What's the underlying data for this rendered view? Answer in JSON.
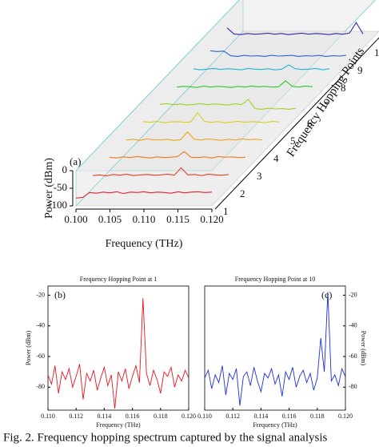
{
  "caption": "Fig. 2. Frequency hopping spectrum captured by the signal analysis",
  "chart_data": [
    {
      "type": "waterfall",
      "panel_label": "(a)",
      "y_label": "Power (dBm)",
      "x_label": "Frequency (THz)",
      "z_label": "Frequency Hopping Points",
      "xlim": [
        0.1,
        0.12
      ],
      "xticks": [
        {
          "value": 0.1,
          "label": "0.100"
        },
        {
          "value": 0.105,
          "label": "0.105"
        },
        {
          "value": 0.11,
          "label": "0.110"
        },
        {
          "value": 0.115,
          "label": "0.115"
        },
        {
          "value": 0.12,
          "label": "0.120"
        }
      ],
      "ylim": [
        -100,
        0
      ],
      "yticks": [
        0,
        -50,
        -100
      ],
      "x": [
        0.1,
        0.101,
        0.102,
        0.103,
        0.104,
        0.105,
        0.106,
        0.107,
        0.108,
        0.109,
        0.11,
        0.111,
        0.112,
        0.113,
        0.114,
        0.115,
        0.116,
        0.117,
        0.118,
        0.119,
        0.12
      ],
      "series": [
        {
          "name": "1",
          "color": "#e8202a",
          "values": [
            -78,
            -76,
            -62,
            -64,
            -61,
            -63,
            -60,
            -65,
            -61,
            -62,
            -60,
            -63,
            -61,
            -62,
            -64,
            -60,
            -63,
            -61,
            -60,
            -62,
            -61
          ]
        },
        {
          "name": "2",
          "color": "#ee3a24",
          "values": [
            -64,
            -62,
            -65,
            -61,
            -63,
            -60,
            -64,
            -62,
            -61,
            -63,
            -62,
            -60,
            -63,
            -42,
            -62,
            -61,
            -64,
            -60,
            -62,
            -63,
            -61
          ]
        },
        {
          "name": "3",
          "color": "#f07a1c",
          "values": [
            -62,
            -64,
            -61,
            -63,
            -60,
            -62,
            -64,
            -61,
            -63,
            -62,
            -60,
            -46,
            -62,
            -63,
            -61,
            -64,
            -60,
            -62,
            -61,
            -63,
            -62
          ]
        },
        {
          "name": "4",
          "color": "#f5a21a",
          "values": [
            -63,
            -61,
            -64,
            -60,
            -62,
            -63,
            -61,
            -64,
            -62,
            -40,
            -61,
            -63,
            -60,
            -62,
            -64,
            -61,
            -63,
            -60,
            -62,
            -61,
            -63
          ]
        },
        {
          "name": "5",
          "color": "#d6d21c",
          "values": [
            -61,
            -63,
            -60,
            -64,
            -62,
            -61,
            -63,
            -62,
            -36,
            -60,
            -63,
            -61,
            -64,
            -62,
            -60,
            -63,
            -61,
            -62,
            -64,
            -60,
            -62
          ]
        },
        {
          "name": "6",
          "color": "#9cd41e",
          "values": [
            -62,
            -60,
            -63,
            -61,
            -64,
            -62,
            -60,
            -63,
            -61,
            -62,
            -64,
            -60,
            -63,
            -48,
            -74,
            -76,
            -73,
            -75,
            -74,
            -76,
            -73
          ]
        },
        {
          "name": "7",
          "color": "#2ec82a",
          "values": [
            -63,
            -61,
            -62,
            -64,
            -60,
            -63,
            -61,
            -62,
            -64,
            -61,
            -63,
            -60,
            -62,
            -61,
            -63,
            -62,
            -45,
            -61,
            -63,
            -60,
            -62
          ]
        },
        {
          "name": "8",
          "color": "#1cb6d8",
          "values": [
            -61,
            -64,
            -62,
            -60,
            -63,
            -61,
            -62,
            -64,
            -60,
            -62,
            -63,
            -61,
            -64,
            -62,
            -50,
            -61,
            -63,
            -62,
            -60,
            -64,
            -61
          ]
        },
        {
          "name": "9",
          "color": "#2a5fd8",
          "values": [
            -60,
            -62,
            -61,
            -74,
            -76,
            -73,
            -75,
            -74,
            -76,
            -73,
            -75,
            -74,
            -73,
            -76,
            -74,
            -75,
            -73,
            -76,
            -74,
            -75,
            -73
          ]
        },
        {
          "name": "10",
          "color": "#2f2aa8",
          "values": [
            -45,
            -62,
            -64,
            -61,
            -63,
            -62,
            -60,
            -63,
            -61,
            -64,
            -62,
            -60,
            -63,
            -61,
            -62,
            -64,
            -61,
            -63,
            -60,
            -30,
            -62
          ]
        }
      ]
    },
    {
      "type": "line",
      "panel_label": "(b)",
      "title": "Frequency Hopping Point at 1",
      "y_label": "Power (dBm)",
      "x_label": "Frequency (THz)",
      "color": "#e8141c",
      "xlim": [
        0.11,
        0.12
      ],
      "xticks": [
        {
          "value": 0.11,
          "label": "0.110"
        },
        {
          "value": 0.112,
          "label": "0.112"
        },
        {
          "value": 0.114,
          "label": "0.114"
        },
        {
          "value": 0.116,
          "label": "0.116"
        },
        {
          "value": 0.118,
          "label": "0.118"
        },
        {
          "value": 0.12,
          "label": "0.120"
        }
      ],
      "ylim": [
        -95,
        -14
      ],
      "yticks": [
        -20,
        -40,
        -60,
        -80
      ],
      "x": [
        0.11,
        0.11025,
        0.1105,
        0.11075,
        0.111,
        0.11125,
        0.1115,
        0.11175,
        0.112,
        0.11225,
        0.1125,
        0.11275,
        0.113,
        0.11325,
        0.1135,
        0.11375,
        0.114,
        0.11425,
        0.1145,
        0.11475,
        0.115,
        0.11525,
        0.1155,
        0.11575,
        0.116,
        0.11625,
        0.1165,
        0.11675,
        0.117,
        0.11725,
        0.1175,
        0.11775,
        0.118,
        0.11825,
        0.1185,
        0.11875,
        0.119,
        0.11925,
        0.1195,
        0.11975,
        0.12
      ],
      "values": [
        -72,
        -78,
        -66,
        -84,
        -70,
        -75,
        -68,
        -80,
        -73,
        -65,
        -88,
        -71,
        -76,
        -69,
        -82,
        -74,
        -67,
        -79,
        -72,
        -94,
        -70,
        -76,
        -68,
        -81,
        -73,
        -66,
        -77,
        -22,
        -71,
        -79,
        -69,
        -75,
        -84,
        -70,
        -73,
        -67,
        -80,
        -72,
        -76,
        -69,
        -74
      ]
    },
    {
      "type": "line",
      "panel_label": "(c)",
      "title": "Frequency Hopping Point at 10",
      "y_label": "Power (dBm)",
      "x_label": "Frequency (THz)",
      "color": "#1a2ee0",
      "xlim": [
        0.11,
        0.12
      ],
      "xticks": [
        {
          "value": 0.11,
          "label": "0.110"
        },
        {
          "value": 0.112,
          "label": "0.112"
        },
        {
          "value": 0.114,
          "label": "0.114"
        },
        {
          "value": 0.116,
          "label": "0.116"
        },
        {
          "value": 0.118,
          "label": "0.118"
        },
        {
          "value": 0.12,
          "label": "0.120"
        }
      ],
      "ylim": [
        -95,
        -14
      ],
      "yticks": [
        -20,
        -40,
        -60,
        -80
      ],
      "x": [
        0.11,
        0.11025,
        0.1105,
        0.11075,
        0.111,
        0.11125,
        0.1115,
        0.11175,
        0.112,
        0.11225,
        0.1125,
        0.11275,
        0.113,
        0.11325,
        0.1135,
        0.11375,
        0.114,
        0.11425,
        0.1145,
        0.11475,
        0.115,
        0.11525,
        0.1155,
        0.11575,
        0.116,
        0.11625,
        0.1165,
        0.11675,
        0.117,
        0.11725,
        0.1175,
        0.11775,
        0.118,
        0.11825,
        0.1185,
        0.11875,
        0.119,
        0.11925,
        0.1195,
        0.11975,
        0.12
      ],
      "values": [
        -74,
        -69,
        -81,
        -72,
        -77,
        -66,
        -85,
        -71,
        -75,
        -68,
        -92,
        -73,
        -70,
        -79,
        -67,
        -76,
        -83,
        -71,
        -74,
        -68,
        -78,
        -72,
        -86,
        -70,
        -75,
        -67,
        -80,
        -73,
        -69,
        -77,
        -71,
        -82,
        -74,
        -48,
        -70,
        -18,
        -76,
        -72,
        -79,
        -68,
        -73
      ]
    }
  ]
}
